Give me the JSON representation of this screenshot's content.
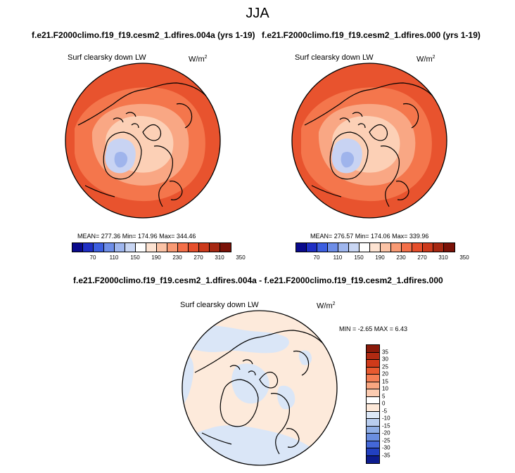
{
  "main_title": "JJA",
  "panels": [
    {
      "case_title": "f.e21.F2000climo.f19_f19.cesm2_1.dfires.004a (yrs 1-19)",
      "variable": "Surf clearsky down LW",
      "units": "W/m",
      "units_exp": "2",
      "stats": "MEAN= 277.36  Min= 174.96  Max= 344.46",
      "colorbar_ticks": [
        "70",
        "110",
        "150",
        "190",
        "230",
        "270",
        "310",
        "350"
      ]
    },
    {
      "case_title": "f.e21.F2000climo.f19_f19.cesm2_1.dfires.000 (yrs 1-19)",
      "variable": "Surf clearsky down LW",
      "units": "W/m",
      "units_exp": "2",
      "stats": "MEAN= 276.57  Min= 174.06  Max= 339.96",
      "colorbar_ticks": [
        "70",
        "110",
        "150",
        "190",
        "230",
        "270",
        "310",
        "350"
      ]
    }
  ],
  "diff_panel": {
    "title": "f.e21.F2000climo.f19_f19.cesm2_1.dfires.004a - f.e21.F2000climo.f19_f19.cesm2_1.dfires.000",
    "variable": "Surf clearsky down LW",
    "units": "W/m",
    "units_exp": "2",
    "stats": "MIN = -2.65  MAX =  6.43",
    "colorbar_ticks": [
      "35",
      "30",
      "25",
      "20",
      "15",
      "10",
      "5",
      "0",
      "-5",
      "-10",
      "-15",
      "-20",
      "-25",
      "-30",
      "-35"
    ]
  },
  "colors": {
    "abs_scale": [
      "#0a0a8c",
      "#1f2fc4",
      "#3c5ee0",
      "#6e8ee8",
      "#9fb6ee",
      "#c9d6f3",
      "#ffffff",
      "#fde3d2",
      "#fbc3a6",
      "#f89a74",
      "#f3704a",
      "#e64f2c",
      "#cc3a1c",
      "#a62812",
      "#7a1208"
    ],
    "diff_scale": [
      "#8a1a0a",
      "#b02a12",
      "#cf3a1a",
      "#e85a30",
      "#f57f55",
      "#f9a680",
      "#fccbb0",
      "#fde8d8",
      "#dde8f7",
      "#b8cdef",
      "#8faee6",
      "#6a8ee0",
      "#4468d8",
      "#2240c0",
      "#0d1c8e"
    ],
    "outer_ring": "#e8532e",
    "mid_ring": "#f4764c",
    "inner_ring": "#f9a784",
    "arctic": "#fcd0b6",
    "greenland_low": "#c8d3f3",
    "greenland_min": "#9fb4ec",
    "diff_base": "#fdeadb",
    "diff_blue": "#dae6f7"
  }
}
